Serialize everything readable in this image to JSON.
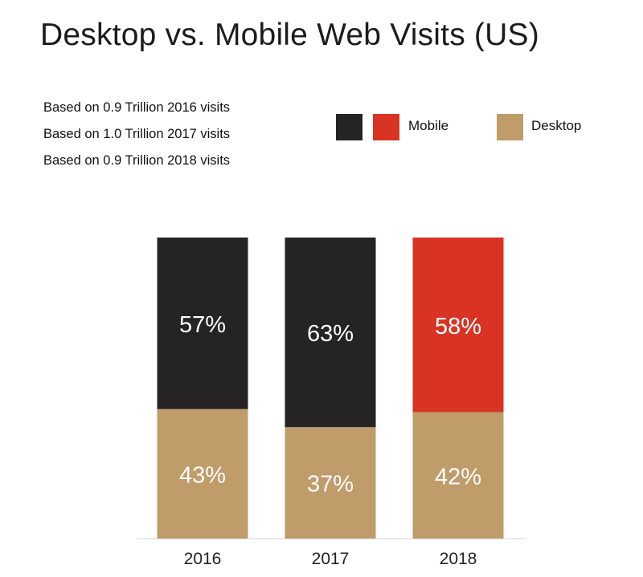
{
  "title": "Desktop vs. Mobile Web Visits (US)",
  "notes": [
    "Based on 0.9 Trillion 2016 visits",
    "Based on 1.0 Trillion 2017 visits",
    "Based on 0.9 Trillion 2018 visits"
  ],
  "legend": {
    "dark_swatch_color": "#252323",
    "mobile_label": "Mobile",
    "mobile_color": "#d93324",
    "desktop_label": "Desktop",
    "desktop_color": "#bf9c6a"
  },
  "chart_data": {
    "type": "bar",
    "stacked": true,
    "title": "Desktop vs. Mobile Web Visits (US)",
    "categories": [
      "2016",
      "2017",
      "2018"
    ],
    "ylim": [
      0,
      100
    ],
    "unit": "%",
    "series": [
      {
        "name": "Desktop",
        "values": [
          43,
          37,
          42
        ],
        "colors": [
          "#bf9c6a",
          "#bf9c6a",
          "#bf9c6a"
        ],
        "labels": [
          "43%",
          "37%",
          "42%"
        ]
      },
      {
        "name": "Mobile",
        "values": [
          57,
          63,
          58
        ],
        "colors": [
          "#252323",
          "#252323",
          "#d93324"
        ],
        "labels": [
          "57%",
          "63%",
          "58%"
        ]
      }
    ],
    "grid": false,
    "legend_position": "top-right"
  }
}
